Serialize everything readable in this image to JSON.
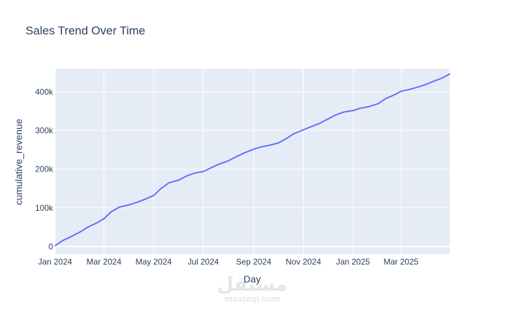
{
  "chart_data": {
    "type": "line",
    "title": "Sales Trend Over Time",
    "xlabel": "Day",
    "ylabel": "cumulative_revenue",
    "x_range": [
      "2024-01-01",
      "2025-04-30"
    ],
    "ylim": [
      -20000,
      460000
    ],
    "x_ticks": [
      {
        "date": "2024-01-01",
        "label": "Jan 2024"
      },
      {
        "date": "2024-03-01",
        "label": "Mar 2024"
      },
      {
        "date": "2024-05-01",
        "label": "May 2024"
      },
      {
        "date": "2024-07-01",
        "label": "Jul 2024"
      },
      {
        "date": "2024-09-01",
        "label": "Sep 2024"
      },
      {
        "date": "2024-11-01",
        "label": "Nov 2024"
      },
      {
        "date": "2025-01-01",
        "label": "Jan 2025"
      },
      {
        "date": "2025-03-01",
        "label": "Mar 2025"
      }
    ],
    "y_ticks": [
      {
        "value": 0,
        "label": "0"
      },
      {
        "value": 100000,
        "label": "100k"
      },
      {
        "value": 200000,
        "label": "200k"
      },
      {
        "value": 300000,
        "label": "300k"
      },
      {
        "value": 400000,
        "label": "400k"
      }
    ],
    "grid": true,
    "colors": {
      "plot_background": "#E5ECF6",
      "gridline": "#FFFFFF",
      "line": "#636EFA",
      "text": "#2A3F5F",
      "title": "#2A3F5F"
    },
    "series": [
      {
        "x": [
          "2024-01-01",
          "2024-01-10",
          "2024-01-20",
          "2024-02-01",
          "2024-02-10",
          "2024-02-20",
          "2024-03-01",
          "2024-03-10",
          "2024-03-20",
          "2024-04-01",
          "2024-04-10",
          "2024-04-20",
          "2024-05-01",
          "2024-05-10",
          "2024-05-20",
          "2024-06-01",
          "2024-06-10",
          "2024-06-20",
          "2024-07-01",
          "2024-07-10",
          "2024-07-20",
          "2024-08-01",
          "2024-08-10",
          "2024-08-20",
          "2024-09-01",
          "2024-09-10",
          "2024-09-20",
          "2024-10-01",
          "2024-10-10",
          "2024-10-20",
          "2024-11-01",
          "2024-11-10",
          "2024-11-20",
          "2024-12-01",
          "2024-12-10",
          "2024-12-20",
          "2025-01-01",
          "2025-01-10",
          "2025-01-20",
          "2025-02-01",
          "2025-02-10",
          "2025-02-20",
          "2025-03-01",
          "2025-03-10",
          "2025-03-20",
          "2025-04-01",
          "2025-04-10",
          "2025-04-20",
          "2025-04-30"
        ],
        "y": [
          2000,
          15000,
          25000,
          38000,
          50000,
          60000,
          72000,
          90000,
          102000,
          108000,
          114000,
          122000,
          132000,
          150000,
          165000,
          172000,
          182000,
          190000,
          194000,
          203000,
          213000,
          222000,
          232000,
          242000,
          252000,
          258000,
          262000,
          268000,
          278000,
          292000,
          302000,
          310000,
          318000,
          330000,
          340000,
          348000,
          352000,
          358000,
          362000,
          370000,
          383000,
          392000,
          402000,
          406000,
          412000,
          420000,
          428000,
          436000,
          447000
        ]
      }
    ]
  },
  "watermark": {
    "text": "mostaql.com",
    "arabic_text": "مستقل"
  }
}
